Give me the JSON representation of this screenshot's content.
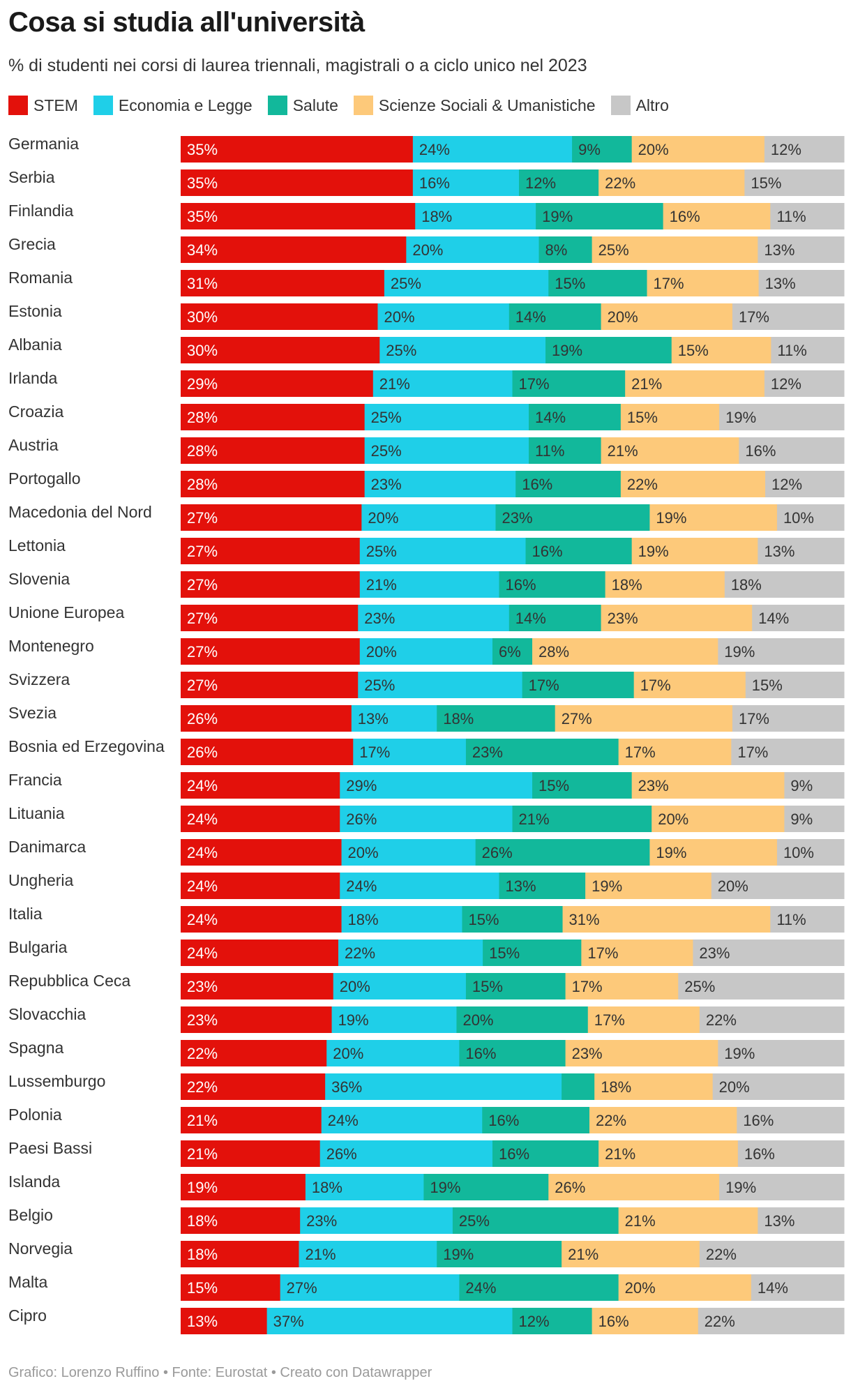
{
  "chart_data": {
    "type": "bar",
    "orientation": "horizontal",
    "stacked": true,
    "title": "Cosa si studia all'università",
    "subtitle": "% di studenti nei corsi di laurea triennali, magistrali o a ciclo unico nel 2023",
    "series": [
      {
        "name": "STEM",
        "color": "#e3110b",
        "values": [
          35,
          35,
          35,
          34,
          31,
          30,
          30,
          29,
          28,
          28,
          28,
          27,
          27,
          27,
          27,
          27,
          27,
          26,
          26,
          24,
          24,
          24,
          24,
          24,
          24,
          23,
          23,
          22,
          22,
          21,
          21,
          19,
          18,
          18,
          15,
          13
        ]
      },
      {
        "name": "Economia e Legge",
        "color": "#1fcfe8",
        "values": [
          24,
          16,
          18,
          20,
          25,
          20,
          25,
          21,
          25,
          25,
          23,
          20,
          25,
          21,
          23,
          20,
          25,
          13,
          17,
          29,
          26,
          20,
          24,
          18,
          22,
          20,
          19,
          20,
          36,
          24,
          26,
          18,
          23,
          21,
          27,
          37
        ]
      },
      {
        "name": "Salute",
        "color": "#12b89b",
        "values": [
          9,
          12,
          19,
          8,
          15,
          14,
          19,
          17,
          14,
          11,
          16,
          23,
          16,
          16,
          14,
          6,
          17,
          18,
          23,
          15,
          21,
          26,
          13,
          15,
          15,
          15,
          20,
          16,
          5,
          16,
          16,
          19,
          25,
          19,
          24,
          12
        ]
      },
      {
        "name": "Scienze Sociali & Umanistiche",
        "color": "#fdc97a",
        "values": [
          20,
          22,
          16,
          25,
          17,
          20,
          15,
          21,
          15,
          21,
          22,
          19,
          19,
          18,
          23,
          28,
          17,
          27,
          17,
          23,
          20,
          19,
          19,
          31,
          17,
          17,
          17,
          23,
          18,
          22,
          21,
          26,
          21,
          21,
          20,
          16
        ]
      },
      {
        "name": "Altro",
        "color": "#c7c7c7",
        "values": [
          12,
          15,
          11,
          13,
          13,
          17,
          11,
          12,
          19,
          16,
          12,
          10,
          13,
          18,
          14,
          19,
          15,
          17,
          17,
          9,
          9,
          10,
          20,
          11,
          23,
          25,
          22,
          19,
          20,
          16,
          16,
          19,
          13,
          22,
          14,
          22
        ]
      }
    ],
    "labels": [
      [
        "35%",
        "24%",
        "9%",
        "20%",
        "12%"
      ],
      [
        "35%",
        "16%",
        "12%",
        "22%",
        "15%"
      ],
      [
        "35%",
        "18%",
        "19%",
        "16%",
        "11%"
      ],
      [
        "34%",
        "20%",
        "8%",
        "25%",
        "13%"
      ],
      [
        "31%",
        "25%",
        "15%",
        "17%",
        "13%"
      ],
      [
        "30%",
        "20%",
        "14%",
        "20%",
        "17%"
      ],
      [
        "30%",
        "25%",
        "19%",
        "15%",
        "11%"
      ],
      [
        "29%",
        "21%",
        "17%",
        "21%",
        "12%"
      ],
      [
        "28%",
        "25%",
        "14%",
        "15%",
        "19%"
      ],
      [
        "28%",
        "25%",
        "11%",
        "21%",
        "16%"
      ],
      [
        "28%",
        "23%",
        "16%",
        "22%",
        "12%"
      ],
      [
        "27%",
        "20%",
        "23%",
        "19%",
        "10%"
      ],
      [
        "27%",
        "25%",
        "16%",
        "19%",
        "13%"
      ],
      [
        "27%",
        "21%",
        "16%",
        "18%",
        "18%"
      ],
      [
        "27%",
        "23%",
        "14%",
        "23%",
        "14%"
      ],
      [
        "27%",
        "20%",
        "6%",
        "28%",
        "19%"
      ],
      [
        "27%",
        "25%",
        "17%",
        "17%",
        "15%"
      ],
      [
        "26%",
        "13%",
        "18%",
        "27%",
        "17%"
      ],
      [
        "26%",
        "17%",
        "23%",
        "17%",
        "17%"
      ],
      [
        "24%",
        "29%",
        "15%",
        "23%",
        "9%"
      ],
      [
        "24%",
        "26%",
        "21%",
        "20%",
        "9%"
      ],
      [
        "24%",
        "20%",
        "26%",
        "19%",
        "10%"
      ],
      [
        "24%",
        "24%",
        "13%",
        "19%",
        "20%"
      ],
      [
        "24%",
        "18%",
        "15%",
        "31%",
        "11%"
      ],
      [
        "24%",
        "22%",
        "15%",
        "17%",
        "23%"
      ],
      [
        "23%",
        "20%",
        "15%",
        "17%",
        "25%"
      ],
      [
        "23%",
        "19%",
        "20%",
        "17%",
        "22%"
      ],
      [
        "22%",
        "20%",
        "16%",
        "23%",
        "19%"
      ],
      [
        "22%",
        "36%",
        "",
        "18%",
        "20%"
      ],
      [
        "21%",
        "24%",
        "16%",
        "22%",
        "16%"
      ],
      [
        "21%",
        "26%",
        "16%",
        "21%",
        "16%"
      ],
      [
        "19%",
        "18%",
        "19%",
        "26%",
        "19%"
      ],
      [
        "18%",
        "23%",
        "25%",
        "21%",
        "13%"
      ],
      [
        "18%",
        "21%",
        "19%",
        "21%",
        "22%"
      ],
      [
        "15%",
        "27%",
        "24%",
        "20%",
        "14%"
      ],
      [
        "13%",
        "37%",
        "12%",
        "16%",
        "22%"
      ]
    ],
    "categories": [
      "Germania",
      "Serbia",
      "Finlandia",
      "Grecia",
      "Romania",
      "Estonia",
      "Albania",
      "Irlanda",
      "Croazia",
      "Austria",
      "Portogallo",
      "Macedonia del Nord",
      "Lettonia",
      "Slovenia",
      "Unione Europea",
      "Montenegro",
      "Svizzera",
      "Svezia",
      "Bosnia ed Erzegovina",
      "Francia",
      "Lituania",
      "Danimarca",
      "Ungheria",
      "Italia",
      "Bulgaria",
      "Repubblica Ceca",
      "Slovacchia",
      "Spagna",
      "Lussemburgo",
      "Polonia",
      "Paesi Bassi",
      "Islanda",
      "Belgio",
      "Norvegia",
      "Malta",
      "Cipro"
    ],
    "xlim": [
      0,
      100
    ],
    "source_note": "Grafico: Lorenzo Ruffino • Fonte: Eurostat • Creato con Datawrapper"
  }
}
